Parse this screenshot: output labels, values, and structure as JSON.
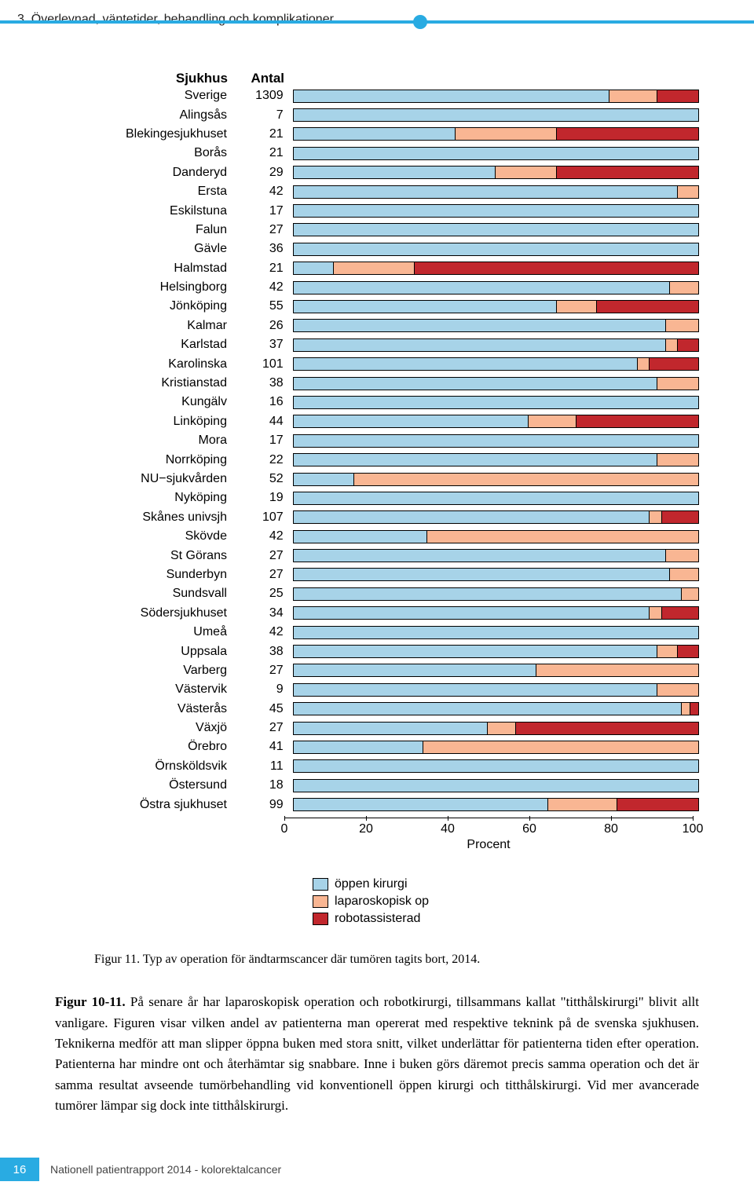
{
  "header": {
    "section_number": "3",
    "section_title": "Överlevnad, väntetider, behandling och komplikationer"
  },
  "colors": {
    "open": "#a7d3e8",
    "lap": "#f9b693",
    "robot": "#c1272d",
    "border": "#000000",
    "accent": "#29abe2"
  },
  "chart": {
    "col_sjukhus": "Sjukhus",
    "col_antal": "Antal",
    "axis_label": "Procent",
    "xlim": [
      0,
      100
    ],
    "ticks": [
      0,
      20,
      40,
      60,
      80,
      100
    ],
    "legend": [
      {
        "label": "öppen kirurgi",
        "color": "#a7d3e8"
      },
      {
        "label": "laparoskopisk op",
        "color": "#f9b693"
      },
      {
        "label": "robotassisterad",
        "color": "#c1272d"
      }
    ],
    "rows": [
      {
        "name": "Sverige",
        "antal": 1309,
        "seg": [
          78,
          12,
          10
        ]
      },
      {
        "name": "Alingsås",
        "antal": 7,
        "seg": [
          100,
          0,
          0
        ]
      },
      {
        "name": "Blekingesjukhuset",
        "antal": 21,
        "seg": [
          40,
          25,
          35
        ]
      },
      {
        "name": "Borås",
        "antal": 21,
        "seg": [
          100,
          0,
          0
        ]
      },
      {
        "name": "Danderyd",
        "antal": 29,
        "seg": [
          50,
          15,
          35
        ]
      },
      {
        "name": "Ersta",
        "antal": 42,
        "seg": [
          95,
          5,
          0
        ]
      },
      {
        "name": "Eskilstuna",
        "antal": 17,
        "seg": [
          100,
          0,
          0
        ]
      },
      {
        "name": "Falun",
        "antal": 27,
        "seg": [
          100,
          0,
          0
        ]
      },
      {
        "name": "Gävle",
        "antal": 36,
        "seg": [
          100,
          0,
          0
        ]
      },
      {
        "name": "Halmstad",
        "antal": 21,
        "seg": [
          10,
          20,
          70
        ]
      },
      {
        "name": "Helsingborg",
        "antal": 42,
        "seg": [
          93,
          7,
          0
        ]
      },
      {
        "name": "Jönköping",
        "antal": 55,
        "seg": [
          65,
          10,
          25
        ]
      },
      {
        "name": "Kalmar",
        "antal": 26,
        "seg": [
          92,
          8,
          0
        ]
      },
      {
        "name": "Karlstad",
        "antal": 37,
        "seg": [
          92,
          3,
          5
        ]
      },
      {
        "name": "Karolinska",
        "antal": 101,
        "seg": [
          85,
          3,
          12
        ]
      },
      {
        "name": "Kristianstad",
        "antal": 38,
        "seg": [
          90,
          10,
          0
        ]
      },
      {
        "name": "Kungälv",
        "antal": 16,
        "seg": [
          100,
          0,
          0
        ]
      },
      {
        "name": "Linköping",
        "antal": 44,
        "seg": [
          58,
          12,
          30
        ]
      },
      {
        "name": "Mora",
        "antal": 17,
        "seg": [
          100,
          0,
          0
        ]
      },
      {
        "name": "Norrköping",
        "antal": 22,
        "seg": [
          90,
          10,
          0
        ]
      },
      {
        "name": "NU−sjukvården",
        "antal": 52,
        "seg": [
          15,
          85,
          0
        ]
      },
      {
        "name": "Nyköping",
        "antal": 19,
        "seg": [
          100,
          0,
          0
        ]
      },
      {
        "name": "Skånes univsjh",
        "antal": 107,
        "seg": [
          88,
          3,
          9
        ]
      },
      {
        "name": "Skövde",
        "antal": 42,
        "seg": [
          33,
          67,
          0
        ]
      },
      {
        "name": "St Görans",
        "antal": 27,
        "seg": [
          92,
          8,
          0
        ]
      },
      {
        "name": "Sunderbyn",
        "antal": 27,
        "seg": [
          93,
          7,
          0
        ]
      },
      {
        "name": "Sundsvall",
        "antal": 25,
        "seg": [
          96,
          4,
          0
        ]
      },
      {
        "name": "Södersjukhuset",
        "antal": 34,
        "seg": [
          88,
          3,
          9
        ]
      },
      {
        "name": "Umeå",
        "antal": 42,
        "seg": [
          100,
          0,
          0
        ]
      },
      {
        "name": "Uppsala",
        "antal": 38,
        "seg": [
          90,
          5,
          5
        ]
      },
      {
        "name": "Varberg",
        "antal": 27,
        "seg": [
          60,
          40,
          0
        ]
      },
      {
        "name": "Västervik",
        "antal": 9,
        "seg": [
          90,
          10,
          0
        ]
      },
      {
        "name": "Västerås",
        "antal": 45,
        "seg": [
          96,
          2,
          2
        ]
      },
      {
        "name": "Växjö",
        "antal": 27,
        "seg": [
          48,
          7,
          45
        ]
      },
      {
        "name": "Örebro",
        "antal": 41,
        "seg": [
          32,
          68,
          0
        ]
      },
      {
        "name": "Örnsköldsvik",
        "antal": 11,
        "seg": [
          100,
          0,
          0
        ]
      },
      {
        "name": "Östersund",
        "antal": 18,
        "seg": [
          100,
          0,
          0
        ]
      },
      {
        "name": "Östra sjukhuset",
        "antal": 99,
        "seg": [
          63,
          17,
          20
        ]
      }
    ]
  },
  "caption": {
    "label": "Figur 11.",
    "text": "Typ av operation för ändtarmscancer där tumören tagits bort, 2014."
  },
  "body": {
    "lead": "Figur 10-11.",
    "text": "På senare år har laparoskopisk operation och robotkirurgi, tillsammans kallat \"titthålskirurgi\" blivit allt vanligare. Figuren visar vilken andel av patienterna man opererat med respektive teknink på de svenska sjukhusen. Teknikerna medför att man slipper öppna buken med stora snitt, vilket underlättar för patienterna tiden efter operation. Patienterna har mindre ont och återhämtar sig snabbare. Inne i buken görs däremot precis samma operation och det är samma resultat avseende tumörbehandling vid konventionell öppen kirurgi och titthålskirurgi. Vid mer avancerade tumörer lämpar sig dock inte titthålskirurgi."
  },
  "footer": {
    "page": "16",
    "title": "Nationell patientrapport 2014 - kolorektalcancer"
  }
}
